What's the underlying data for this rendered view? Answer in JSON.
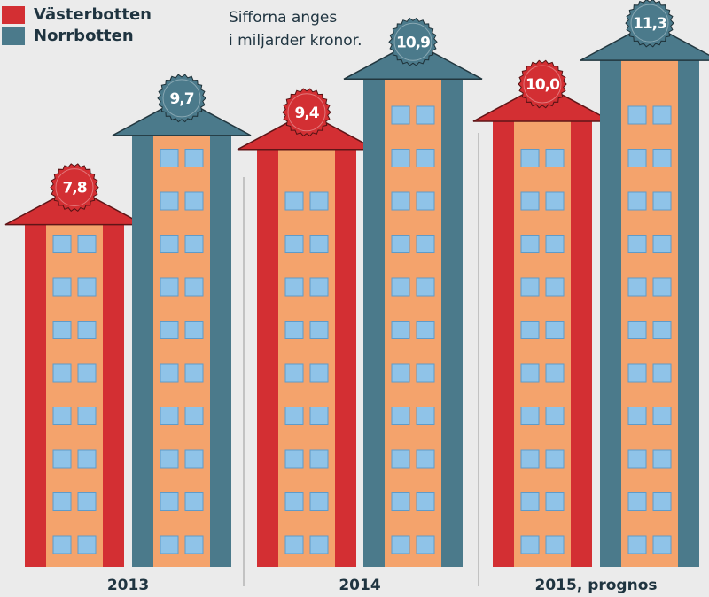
{
  "chart_data": {
    "type": "bar",
    "annotation": [
      "Sifforna anges",
      "i miljarder kronor."
    ],
    "categories": [
      "2013",
      "2014",
      "2015, prognos"
    ],
    "series": [
      {
        "name": "Västerbotten",
        "color": "#d32f33",
        "values": [
          7.8,
          9.4,
          10.0
        ],
        "value_labels": [
          "7,8",
          "9,4",
          "10,0"
        ]
      },
      {
        "name": "Norrbotten",
        "color": "#4b7a8b",
        "values": [
          9.7,
          10.9,
          11.3
        ],
        "value_labels": [
          "9,7",
          "10,9",
          "11,3"
        ]
      }
    ]
  }
}
